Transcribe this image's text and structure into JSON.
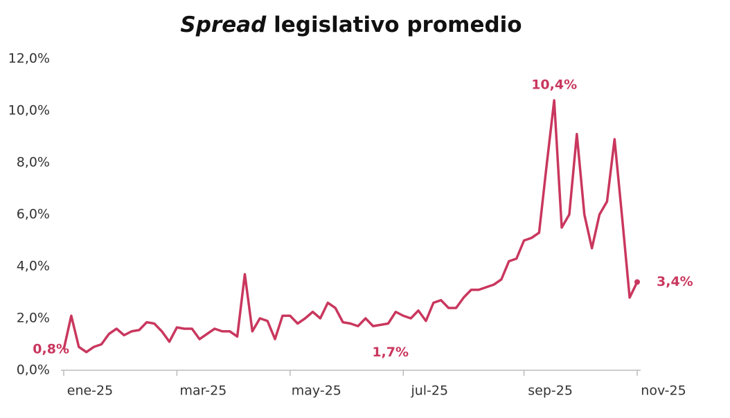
{
  "chart_data": {
    "type": "line",
    "title_emphasis": "Spread",
    "title": "legislativo promedio",
    "categories": [
      "ene-25",
      null,
      null,
      null,
      null,
      null,
      null,
      null,
      null,
      null,
      null,
      null,
      null,
      null,
      null,
      "mar-25",
      null,
      null,
      null,
      null,
      null,
      null,
      null,
      null,
      null,
      null,
      null,
      null,
      null,
      null,
      "may-25",
      null,
      null,
      null,
      null,
      null,
      null,
      null,
      null,
      null,
      null,
      null,
      null,
      null,
      null,
      "jul-25",
      null,
      null,
      null,
      null,
      null,
      null,
      null,
      null,
      null,
      null,
      null,
      null,
      null,
      null,
      null,
      "sep-25",
      null,
      null,
      null,
      null,
      null,
      null,
      null,
      null,
      null,
      null,
      null,
      null,
      null,
      null,
      "nov-25"
    ],
    "series": [
      {
        "name": "Spread legislativo promedio",
        "color": "#c9375e",
        "values": [
          0.8,
          2.1,
          0.9,
          0.7,
          0.9,
          1.0,
          1.4,
          1.6,
          1.35,
          1.5,
          1.55,
          1.85,
          1.8,
          1.5,
          1.1,
          1.65,
          1.6,
          1.6,
          1.2,
          1.4,
          1.6,
          1.5,
          1.5,
          1.3,
          3.7,
          1.5,
          2.0,
          1.9,
          1.2,
          2.1,
          2.1,
          1.8,
          2.0,
          2.25,
          2.0,
          2.6,
          2.4,
          1.85,
          1.8,
          1.7,
          2.0,
          1.7,
          1.75,
          1.8,
          2.25,
          2.1,
          2.0,
          2.3,
          1.9,
          2.6,
          2.7,
          2.4,
          2.4,
          2.8,
          3.1,
          3.1,
          3.2,
          3.3,
          3.5,
          4.2,
          4.3,
          5.0,
          5.1,
          5.3,
          7.9,
          10.4,
          5.5,
          6.0,
          9.1,
          6.0,
          4.7,
          6.0,
          6.5,
          8.9,
          5.9,
          2.8,
          3.4
        ],
        "value_labels": [
          "0,8%",
          null,
          null,
          null,
          null,
          null,
          null,
          null,
          null,
          null,
          null,
          null,
          null,
          null,
          null,
          null,
          null,
          null,
          null,
          null,
          null,
          null,
          null,
          null,
          null,
          null,
          null,
          null,
          null,
          null,
          null,
          null,
          null,
          null,
          null,
          null,
          null,
          null,
          null,
          null,
          null,
          "1,7%",
          null,
          null,
          null,
          null,
          null,
          null,
          null,
          null,
          null,
          null,
          null,
          null,
          null,
          null,
          null,
          null,
          null,
          null,
          null,
          null,
          null,
          null,
          null,
          "10,4%",
          null,
          null,
          null,
          null,
          null,
          null,
          null,
          null,
          null,
          null,
          "3,4%"
        ]
      }
    ],
    "ylim": [
      0,
      12
    ],
    "yticks": [
      {
        "value": 0,
        "label": "0,0%"
      },
      {
        "value": 2,
        "label": "2,0%"
      },
      {
        "value": 4,
        "label": "4,0%"
      },
      {
        "value": 6,
        "label": "6,0%"
      },
      {
        "value": 8,
        "label": "8,0%"
      },
      {
        "value": 10,
        "label": "10,0%"
      },
      {
        "value": 12,
        "label": "12,0%"
      }
    ],
    "grid": false
  }
}
